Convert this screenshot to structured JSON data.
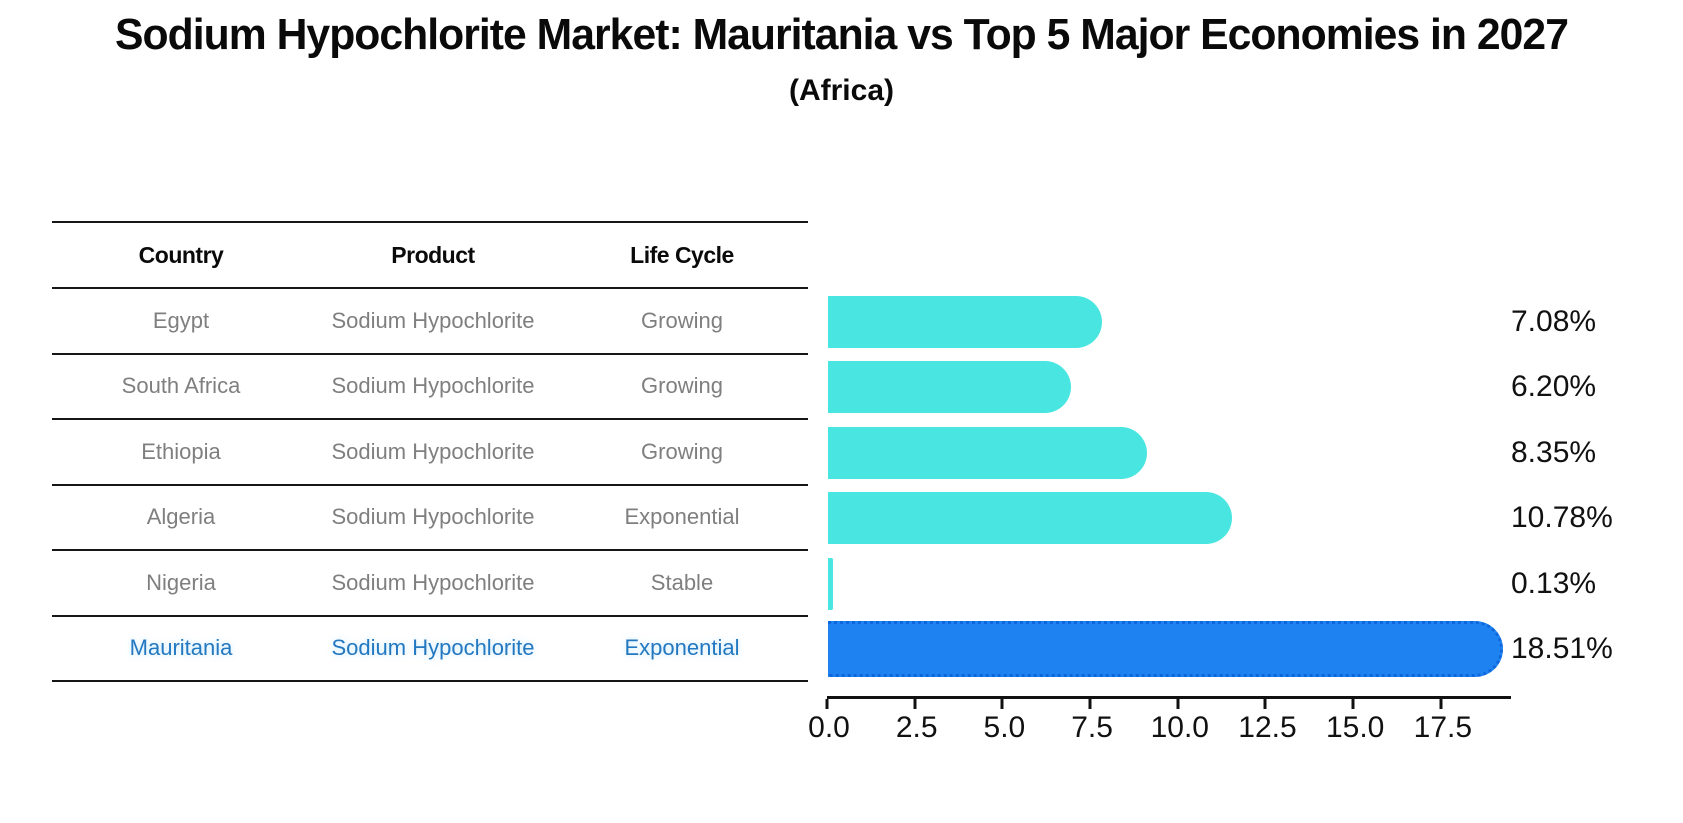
{
  "header": {
    "title": "Sodium Hypochlorite Market: Mauritania vs Top 5 Major Economies in 2027",
    "subtitle": "(Africa)"
  },
  "table": {
    "columns": [
      "Country",
      "Product",
      "Life Cycle"
    ],
    "rows": [
      {
        "country": "Egypt",
        "product": "Sodium Hypochlorite",
        "life_cycle": "Growing"
      },
      {
        "country": "South Africa",
        "product": "Sodium Hypochlorite",
        "life_cycle": "Growing"
      },
      {
        "country": "Ethiopia",
        "product": "Sodium Hypochlorite",
        "life_cycle": "Growing"
      },
      {
        "country": "Algeria",
        "product": "Sodium Hypochlorite",
        "life_cycle": "Exponential"
      },
      {
        "country": "Nigeria",
        "product": "Sodium Hypochlorite",
        "life_cycle": "Stable"
      },
      {
        "country": "Mauritania",
        "product": "Sodium Hypochlorite",
        "life_cycle": "Exponential"
      }
    ],
    "highlight_row": "Mauritania"
  },
  "chart_data": {
    "type": "bar",
    "orientation": "horizontal",
    "title": "Sodium Hypochlorite Market: Mauritania vs Top 5 Major Economies in 2027 (Africa)",
    "categories": [
      "Egypt",
      "South Africa",
      "Ethiopia",
      "Algeria",
      "Nigeria",
      "Mauritania"
    ],
    "values": [
      7.08,
      6.2,
      8.35,
      10.78,
      0.13,
      18.51
    ],
    "value_labels": [
      "7.08%",
      "6.20%",
      "8.35%",
      "10.78%",
      "0.13%",
      "18.51%"
    ],
    "x_ticks": [
      0.0,
      2.5,
      5.0,
      7.5,
      10.0,
      12.5,
      15.0,
      17.5
    ],
    "x_tick_labels": [
      "0.0",
      "2.5",
      "5.0",
      "7.5",
      "10.0",
      "12.5",
      "15.0",
      "17.5"
    ],
    "xlim": [
      0,
      19.5
    ],
    "highlight_index": 5,
    "grid": false,
    "legend_position": "none"
  },
  "colors": {
    "bar_default": "#49E6E1",
    "bar_highlight": "#1E82F0",
    "bar_highlight_edge": "#0E66DD",
    "highlight_text": "#2478C0",
    "table_text": "#7F7F7F",
    "axis_text": "#111111",
    "line": "#161616"
  }
}
